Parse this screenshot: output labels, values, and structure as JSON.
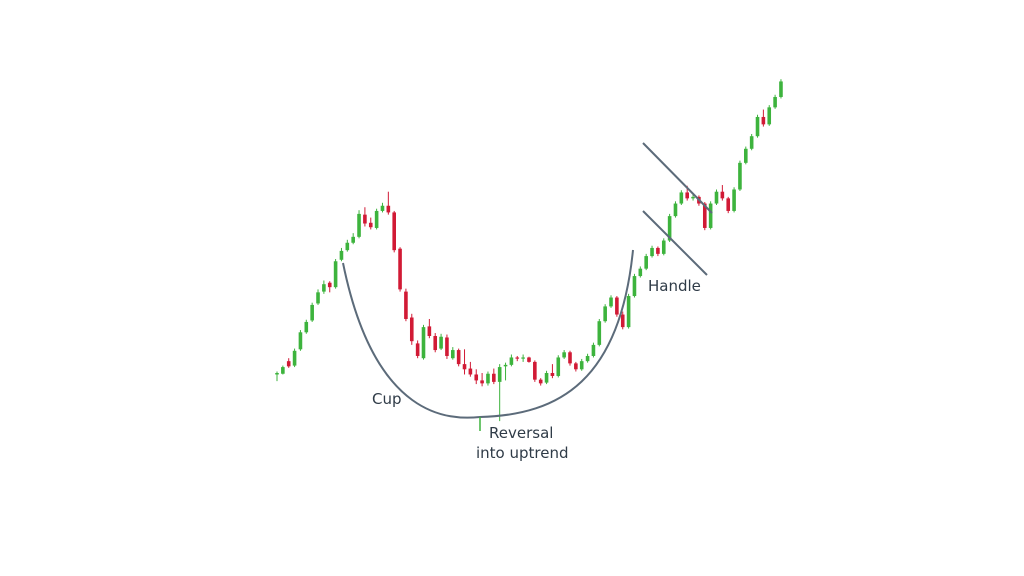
{
  "chart_data": {
    "type": "candlestick",
    "title": "",
    "xlabel": "",
    "ylabel": "",
    "grid": false,
    "legend": "none",
    "colors": {
      "up": "#3db33d",
      "down": "#d11a35",
      "annotation": "#5c6b7a",
      "text": "#2f3b47"
    },
    "candles": [
      {
        "o": 4.8,
        "h": 5.2,
        "l": 3.9,
        "c": 5.0
      },
      {
        "o": 4.9,
        "h": 6.0,
        "l": 4.8,
        "c": 5.8
      },
      {
        "o": 6.6,
        "h": 7.0,
        "l": 5.7,
        "c": 5.9
      },
      {
        "o": 6.0,
        "h": 8.3,
        "l": 5.8,
        "c": 8.0
      },
      {
        "o": 8.2,
        "h": 10.8,
        "l": 8.0,
        "c": 10.5
      },
      {
        "o": 10.5,
        "h": 12.2,
        "l": 10.3,
        "c": 11.9
      },
      {
        "o": 12.1,
        "h": 14.5,
        "l": 11.9,
        "c": 14.2
      },
      {
        "o": 14.4,
        "h": 16.3,
        "l": 14.2,
        "c": 15.9
      },
      {
        "o": 16.0,
        "h": 17.5,
        "l": 15.7,
        "c": 17.0
      },
      {
        "o": 17.2,
        "h": 17.4,
        "l": 15.9,
        "c": 16.6
      },
      {
        "o": 16.6,
        "h": 20.4,
        "l": 16.4,
        "c": 20.1
      },
      {
        "o": 20.3,
        "h": 21.9,
        "l": 20.1,
        "c": 21.5
      },
      {
        "o": 21.6,
        "h": 23.0,
        "l": 21.4,
        "c": 22.6
      },
      {
        "o": 22.6,
        "h": 23.9,
        "l": 22.4,
        "c": 23.4
      },
      {
        "o": 23.4,
        "h": 27.0,
        "l": 23.2,
        "c": 26.5
      },
      {
        "o": 26.4,
        "h": 27.4,
        "l": 24.8,
        "c": 25.2
      },
      {
        "o": 25.3,
        "h": 26.0,
        "l": 24.4,
        "c": 24.7
      },
      {
        "o": 24.6,
        "h": 27.2,
        "l": 24.4,
        "c": 26.9
      },
      {
        "o": 26.9,
        "h": 28.0,
        "l": 26.7,
        "c": 27.6
      },
      {
        "o": 27.6,
        "h": 29.5,
        "l": 26.4,
        "c": 26.7
      },
      {
        "o": 26.7,
        "h": 26.9,
        "l": 21.3,
        "c": 21.6
      },
      {
        "o": 21.8,
        "h": 22.0,
        "l": 16.0,
        "c": 16.3
      },
      {
        "o": 16.0,
        "h": 16.4,
        "l": 12.0,
        "c": 12.3
      },
      {
        "o": 12.5,
        "h": 13.0,
        "l": 8.8,
        "c": 9.3
      },
      {
        "o": 9.0,
        "h": 9.4,
        "l": 7.0,
        "c": 7.3
      },
      {
        "o": 7.0,
        "h": 11.5,
        "l": 6.8,
        "c": 11.2
      },
      {
        "o": 11.3,
        "h": 12.3,
        "l": 9.7,
        "c": 10.0
      },
      {
        "o": 10.0,
        "h": 10.4,
        "l": 7.8,
        "c": 8.1
      },
      {
        "o": 8.3,
        "h": 10.3,
        "l": 8.1,
        "c": 9.9
      },
      {
        "o": 9.8,
        "h": 10.2,
        "l": 6.9,
        "c": 7.3
      },
      {
        "o": 7.0,
        "h": 8.5,
        "l": 6.8,
        "c": 8.1
      },
      {
        "o": 8.1,
        "h": 8.3,
        "l": 5.9,
        "c": 6.2
      },
      {
        "o": 6.2,
        "h": 8.2,
        "l": 4.8,
        "c": 5.5
      },
      {
        "o": 5.6,
        "h": 6.5,
        "l": 4.5,
        "c": 4.8
      },
      {
        "o": 4.8,
        "h": 5.5,
        "l": 3.5,
        "c": 4.0
      },
      {
        "o": 4.0,
        "h": 5.0,
        "l": 3.2,
        "c": 3.6
      },
      {
        "o": 3.6,
        "h": 5.2,
        "l": 3.3,
        "c": 4.9
      },
      {
        "o": 4.9,
        "h": 5.6,
        "l": 3.5,
        "c": 3.8
      },
      {
        "o": 3.8,
        "h": 6.2,
        "l": -1.5,
        "c": 5.8
      },
      {
        "o": 5.9,
        "h": 6.4,
        "l": 4.0,
        "c": 6.1
      },
      {
        "o": 6.1,
        "h": 7.5,
        "l": 5.9,
        "c": 7.1
      },
      {
        "o": 7.1,
        "h": 7.3,
        "l": 6.6,
        "c": 7.0
      },
      {
        "o": 7.0,
        "h": 7.5,
        "l": 6.5,
        "c": 7.1
      },
      {
        "o": 7.1,
        "h": 7.2,
        "l": 6.4,
        "c": 6.5
      },
      {
        "o": 6.5,
        "h": 6.7,
        "l": 3.8,
        "c": 4.1
      },
      {
        "o": 4.1,
        "h": 4.3,
        "l": 3.3,
        "c": 3.6
      },
      {
        "o": 3.7,
        "h": 5.3,
        "l": 3.5,
        "c": 5.0
      },
      {
        "o": 5.0,
        "h": 6.2,
        "l": 4.3,
        "c": 4.6
      },
      {
        "o": 4.6,
        "h": 7.4,
        "l": 4.4,
        "c": 7.1
      },
      {
        "o": 7.1,
        "h": 8.1,
        "l": 6.9,
        "c": 7.8
      },
      {
        "o": 7.8,
        "h": 8.0,
        "l": 6.0,
        "c": 6.3
      },
      {
        "o": 6.3,
        "h": 6.5,
        "l": 5.2,
        "c": 5.5
      },
      {
        "o": 5.5,
        "h": 6.9,
        "l": 5.3,
        "c": 6.6
      },
      {
        "o": 6.6,
        "h": 7.6,
        "l": 6.4,
        "c": 7.3
      },
      {
        "o": 7.3,
        "h": 9.1,
        "l": 7.1,
        "c": 8.8
      },
      {
        "o": 8.8,
        "h": 12.3,
        "l": 8.6,
        "c": 12.0
      },
      {
        "o": 12.0,
        "h": 14.3,
        "l": 11.8,
        "c": 14.0
      },
      {
        "o": 14.0,
        "h": 15.5,
        "l": 13.8,
        "c": 15.2
      },
      {
        "o": 15.2,
        "h": 15.4,
        "l": 12.6,
        "c": 12.9
      },
      {
        "o": 12.9,
        "h": 13.3,
        "l": 10.9,
        "c": 11.2
      },
      {
        "o": 11.2,
        "h": 15.7,
        "l": 11.0,
        "c": 15.4
      },
      {
        "o": 15.4,
        "h": 18.4,
        "l": 15.2,
        "c": 18.1
      },
      {
        "o": 18.1,
        "h": 19.4,
        "l": 17.9,
        "c": 19.1
      },
      {
        "o": 19.1,
        "h": 21.1,
        "l": 18.9,
        "c": 20.8
      },
      {
        "o": 20.8,
        "h": 22.2,
        "l": 20.6,
        "c": 21.9
      },
      {
        "o": 21.9,
        "h": 22.1,
        "l": 20.8,
        "c": 21.1
      },
      {
        "o": 21.1,
        "h": 23.2,
        "l": 20.9,
        "c": 22.9
      },
      {
        "o": 22.9,
        "h": 26.5,
        "l": 22.7,
        "c": 26.2
      },
      {
        "o": 26.2,
        "h": 28.2,
        "l": 26.0,
        "c": 27.9
      },
      {
        "o": 27.9,
        "h": 29.7,
        "l": 27.7,
        "c": 29.4
      },
      {
        "o": 29.4,
        "h": 30.3,
        "l": 28.3,
        "c": 28.6
      },
      {
        "o": 28.6,
        "h": 29.3,
        "l": 28.3,
        "c": 28.8
      },
      {
        "o": 28.8,
        "h": 29.0,
        "l": 27.6,
        "c": 27.9
      },
      {
        "o": 27.9,
        "h": 28.1,
        "l": 24.3,
        "c": 24.6
      },
      {
        "o": 24.6,
        "h": 28.2,
        "l": 24.4,
        "c": 27.9
      },
      {
        "o": 27.9,
        "h": 29.8,
        "l": 27.7,
        "c": 29.5
      },
      {
        "o": 29.5,
        "h": 30.4,
        "l": 28.3,
        "c": 28.6
      },
      {
        "o": 28.6,
        "h": 28.8,
        "l": 26.6,
        "c": 26.9
      },
      {
        "o": 26.9,
        "h": 30.1,
        "l": 26.7,
        "c": 29.8
      },
      {
        "o": 29.8,
        "h": 33.7,
        "l": 29.6,
        "c": 33.4
      },
      {
        "o": 33.4,
        "h": 35.6,
        "l": 33.2,
        "c": 35.3
      },
      {
        "o": 35.3,
        "h": 37.3,
        "l": 35.1,
        "c": 37.0
      },
      {
        "o": 37.0,
        "h": 39.9,
        "l": 36.8,
        "c": 39.6
      },
      {
        "o": 39.6,
        "h": 40.6,
        "l": 38.3,
        "c": 38.6
      },
      {
        "o": 38.6,
        "h": 41.2,
        "l": 38.4,
        "c": 40.9
      },
      {
        "o": 40.9,
        "h": 42.6,
        "l": 40.7,
        "c": 42.3
      },
      {
        "o": 42.3,
        "h": 44.7,
        "l": 42.1,
        "c": 44.4
      }
    ],
    "annotations": [
      {
        "kind": "text",
        "text": "Cup"
      },
      {
        "kind": "text",
        "text": "Reversal"
      },
      {
        "kind": "text",
        "text": "into uptrend"
      },
      {
        "kind": "text",
        "text": "Handle"
      }
    ]
  }
}
